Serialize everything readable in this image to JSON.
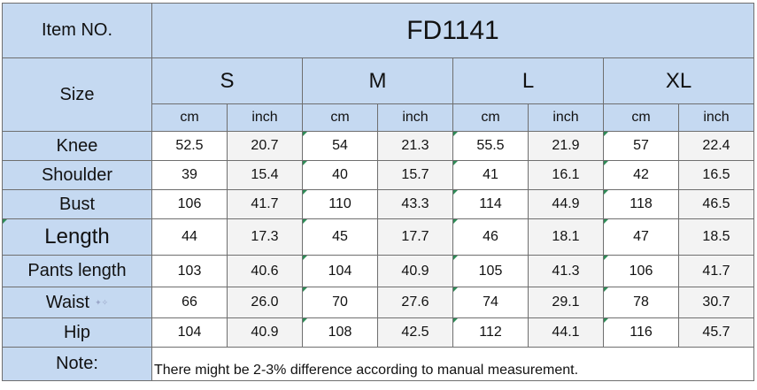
{
  "item_label": "Item NO.",
  "item_no": "FD1141",
  "size_label": "Size",
  "sizes": [
    "S",
    "M",
    "L",
    "XL"
  ],
  "unit_cm": "cm",
  "unit_inch": "inch",
  "rows": [
    {
      "label": "Knee",
      "values": [
        "52.5",
        "20.7",
        "54",
        "21.3",
        "55.5",
        "21.9",
        "57",
        "22.4"
      ]
    },
    {
      "label": "Shoulder",
      "values": [
        "39",
        "15.4",
        "40",
        "15.7",
        "41",
        "16.1",
        "42",
        "16.5"
      ]
    },
    {
      "label": "Bust",
      "values": [
        "106",
        "41.7",
        "110",
        "43.3",
        "114",
        "44.9",
        "118",
        "46.5"
      ]
    },
    {
      "label": "Length",
      "values": [
        "44",
        "17.3",
        "45",
        "17.7",
        "46",
        "18.1",
        "47",
        "18.5"
      ]
    },
    {
      "label": "Pants length",
      "values": [
        "103",
        "40.6",
        "104",
        "40.9",
        "105",
        "41.3",
        "106",
        "41.7"
      ]
    },
    {
      "label": "Waist",
      "values": [
        "66",
        "26.0",
        "70",
        "27.6",
        "74",
        "29.1",
        "78",
        "30.7"
      ]
    },
    {
      "label": "Hip",
      "values": [
        "104",
        "40.9",
        "108",
        "42.5",
        "112",
        "44.1",
        "116",
        "45.7"
      ]
    }
  ],
  "note_label": "Note:",
  "note_text": "There might be 2-3% difference according to manual measurement."
}
